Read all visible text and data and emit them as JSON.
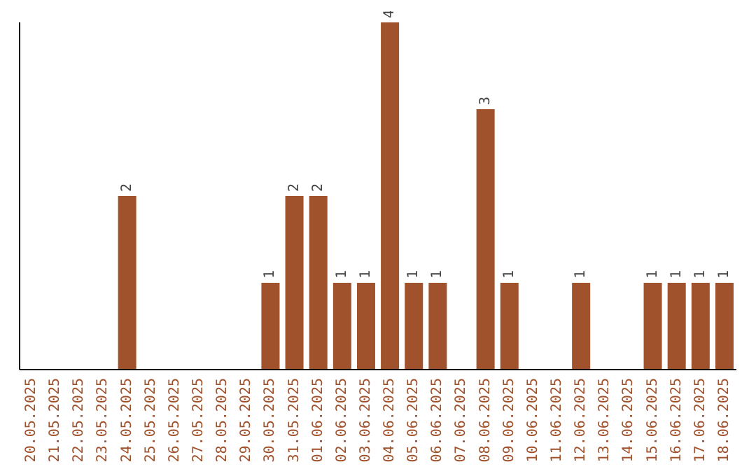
{
  "chart_data": {
    "type": "bar",
    "categories": [
      "20.05.2025",
      "21.05.2025",
      "22.05.2025",
      "23.05.2025",
      "24.05.2025",
      "25.05.2025",
      "26.05.2025",
      "27.05.2025",
      "28.05.2025",
      "29.05.2025",
      "30.05.2025",
      "31.05.2025",
      "01.06.2025",
      "02.06.2025",
      "03.06.2025",
      "04.06.2025",
      "05.06.2025",
      "06.06.2025",
      "07.06.2025",
      "08.06.2025",
      "09.06.2025",
      "10.06.2025",
      "11.06.2025",
      "12.06.2025",
      "13.06.2025",
      "14.06.2025",
      "15.06.2025",
      "16.06.2025",
      "17.06.2025",
      "18.06.2025"
    ],
    "values": [
      0,
      0,
      0,
      0,
      2,
      0,
      0,
      0,
      0,
      0,
      1,
      2,
      2,
      1,
      1,
      4,
      1,
      1,
      0,
      3,
      1,
      0,
      0,
      1,
      0,
      0,
      1,
      1,
      1,
      1
    ],
    "value_labels": [
      null,
      null,
      null,
      null,
      "2",
      null,
      null,
      null,
      null,
      null,
      "1",
      "2",
      "2",
      "1",
      "1",
      "4",
      "1",
      "1",
      null,
      "3",
      "1",
      null,
      null,
      "1",
      null,
      null,
      "1",
      "1",
      "1",
      "1"
    ],
    "color": "#a0522d",
    "grid": false,
    "legend": false
  }
}
